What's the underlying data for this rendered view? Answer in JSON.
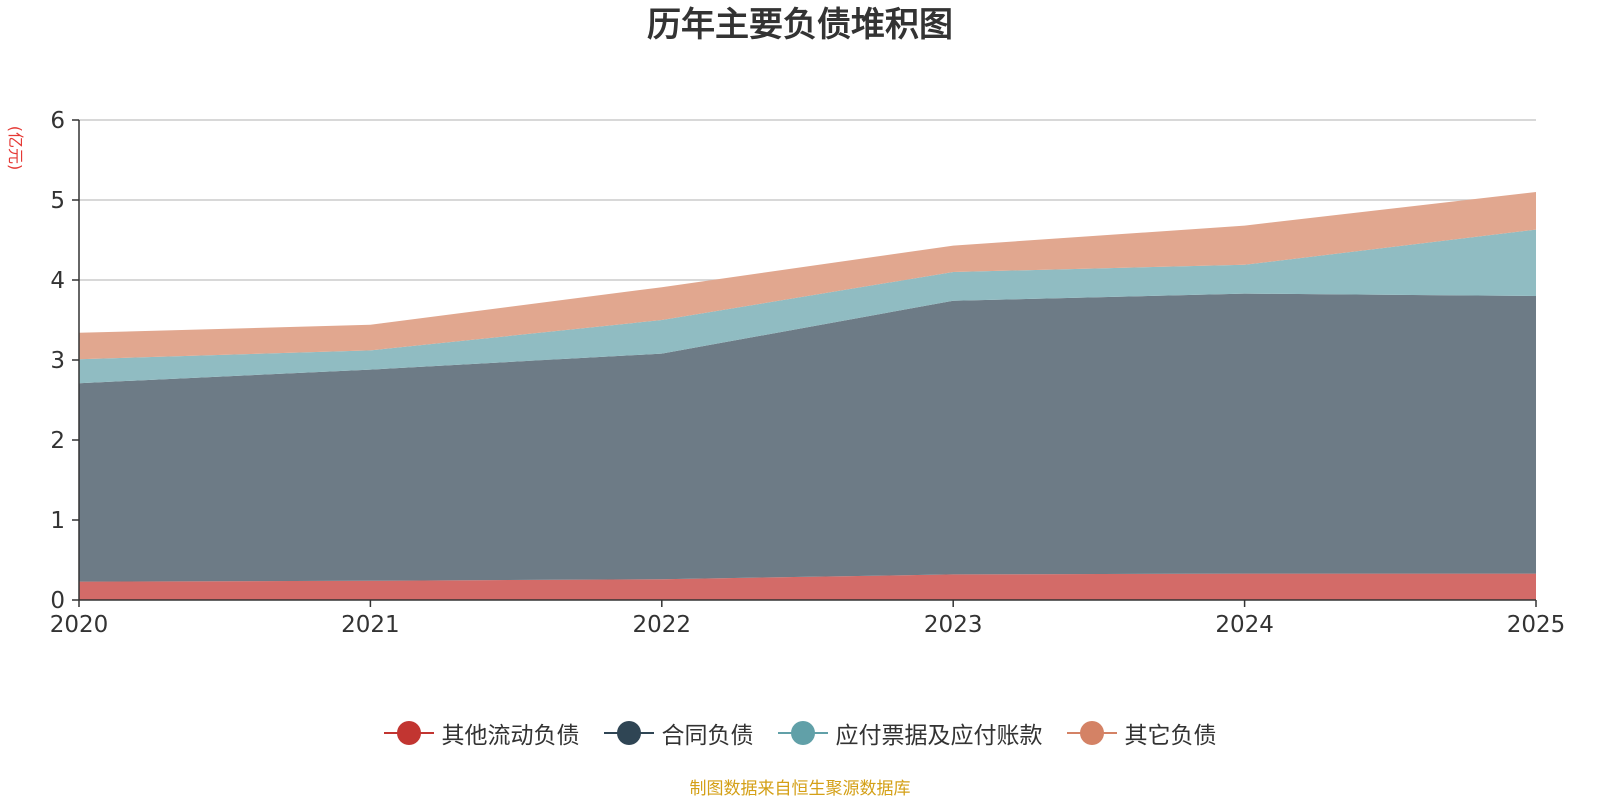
{
  "chart_data": {
    "type": "area",
    "stacked": true,
    "title": "历年主要负债堆积图",
    "ylabel": "(亿元)",
    "xlabel": "",
    "x": [
      "2020",
      "2021",
      "2022",
      "2023",
      "2024",
      "2025"
    ],
    "ylim": [
      0,
      6
    ],
    "yticks": [
      "0",
      "1",
      "2",
      "3",
      "4",
      "5",
      "6"
    ],
    "grid": true,
    "legend_position": "bottom",
    "series": [
      {
        "name": "其他流动负债",
        "color": "#c23531",
        "fill": "#d36b68",
        "values": [
          0.23,
          0.24,
          0.26,
          0.32,
          0.33,
          0.33
        ]
      },
      {
        "name": "合同负债",
        "color": "#2f4554",
        "fill": "#6d7b86",
        "values": [
          2.48,
          2.64,
          2.82,
          3.42,
          3.5,
          3.47
        ]
      },
      {
        "name": "应付票据及应付账款",
        "color": "#61a0a8",
        "fill": "#90bcc2",
        "values": [
          0.3,
          0.24,
          0.42,
          0.36,
          0.36,
          0.83
        ]
      },
      {
        "name": "其它负债",
        "color": "#d48265",
        "fill": "#e1a78f",
        "values": [
          0.33,
          0.32,
          0.41,
          0.33,
          0.49,
          0.47
        ]
      }
    ]
  },
  "source_note": "制图数据来自恒生聚源数据库"
}
